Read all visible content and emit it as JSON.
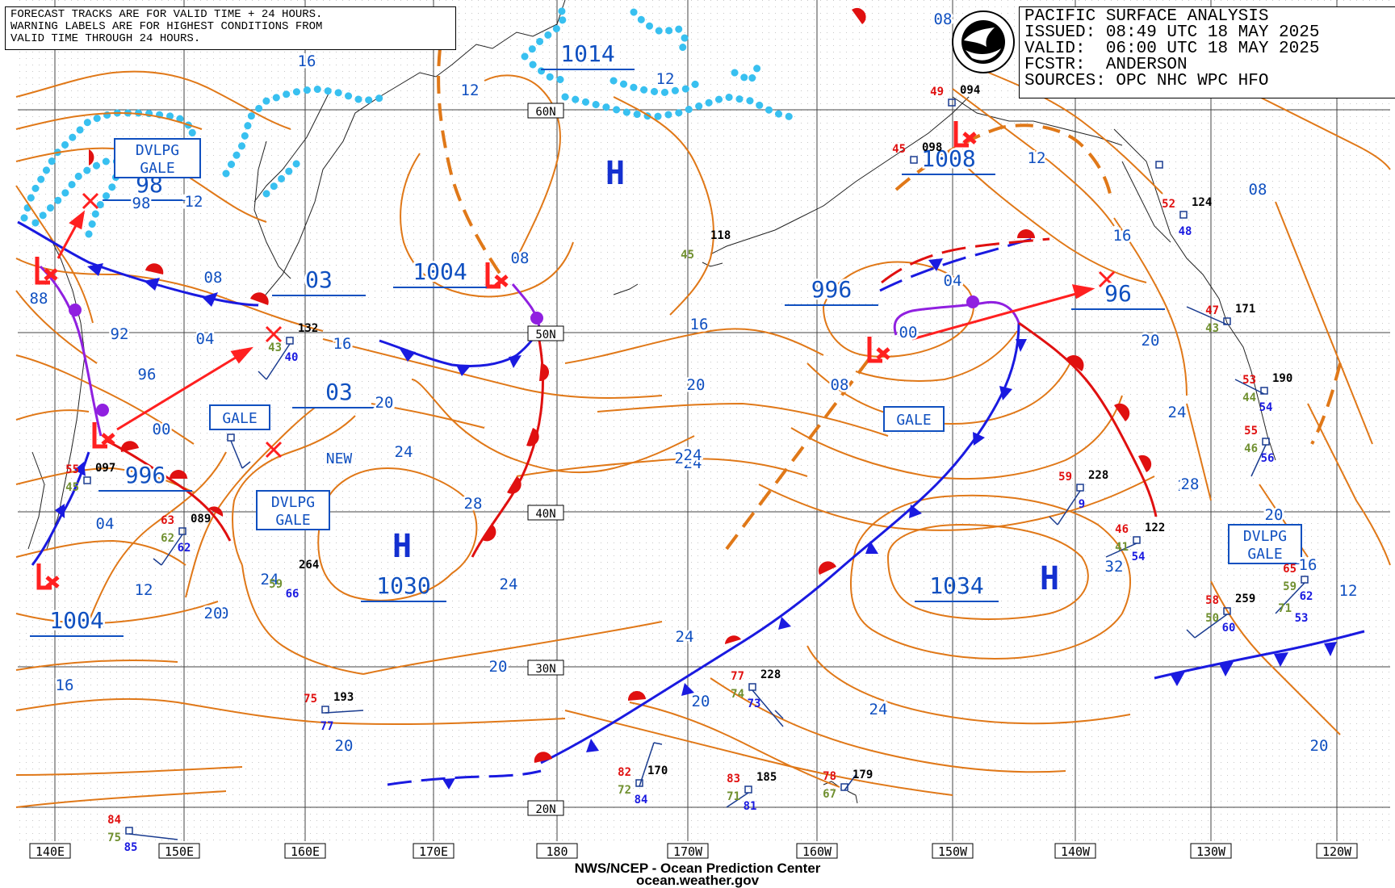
{
  "header_note": [
    "FORECAST TRACKS ARE FOR VALID TIME + 24 HOURS.",
    "WARNING LABELS ARE FOR HIGHEST CONDITIONS FROM",
    "VALID TIME THROUGH 24 HOURS."
  ],
  "title_block": [
    "PACIFIC SURFACE ANALYSIS",
    "ISSUED: 08:49 UTC 18 MAY 2025",
    "VALID:  06:00 UTC 18 MAY 2025",
    "FCSTR:  ANDERSON",
    "SOURCES: OPC NHC WPC HFO"
  ],
  "footer": [
    "NWS/NCEP - Ocean Prediction Center",
    "ocean.weather.gov"
  ],
  "colors": {
    "isobar": "#e07818",
    "label_blue": "#1050c0",
    "cold_front": "#1a1ae0",
    "warm_front": "#e01010",
    "occluded": "#9020e0",
    "ice_edge": "#38c0f0",
    "track": "#ff2020",
    "grid": "#444444"
  },
  "longitudes": [
    "140E",
    "150E",
    "160E",
    "170E",
    "180",
    "170W",
    "160W",
    "150W",
    "140W",
    "130W",
    "120W"
  ],
  "latitudes": [
    "60N",
    "50N",
    "40N",
    "30N",
    "20N"
  ],
  "pressure_centers": [
    {
      "type": "H",
      "value": "1014"
    },
    {
      "type": "H",
      "value": ""
    },
    {
      "type": "L",
      "value": "98"
    },
    {
      "type": "L",
      "value": "03"
    },
    {
      "type": "L",
      "value": "1004"
    },
    {
      "type": "L",
      "value": "1008"
    },
    {
      "type": "L",
      "value": "996"
    },
    {
      "type": "L",
      "value": "96"
    },
    {
      "type": "L",
      "value": "996"
    },
    {
      "type": "L",
      "value": "03"
    },
    {
      "type": "H",
      "value": "1030"
    },
    {
      "type": "H",
      "value": "1034"
    },
    {
      "type": "L",
      "value": "1004"
    }
  ],
  "new_label": "NEW",
  "warnings": [
    "DVLPG GALE",
    "GALE",
    "DVLPG GALE",
    "GALE",
    "DVLPG GALE"
  ],
  "isobar_labels": [
    "16",
    "12",
    "12",
    "08",
    "12",
    "08",
    "98",
    "12",
    "08",
    "88",
    "92",
    "04",
    "96",
    "00",
    "03",
    "16",
    "04",
    "12",
    "16",
    "20",
    "24",
    "20",
    "20",
    "24",
    "28",
    "24",
    "24",
    "20",
    "24",
    "20",
    "16",
    "16",
    "20",
    "24",
    "20",
    "24",
    "28",
    "32",
    "16",
    "08",
    "04",
    "00",
    "08",
    "12",
    "16",
    "20",
    "24",
    "28",
    "20",
    "16",
    "12",
    "08",
    "12",
    "04",
    "16",
    "20",
    "24",
    "20"
  ],
  "stations": [
    {
      "temp": "49",
      "press": "094"
    },
    {
      "temp": "45",
      "press": "098"
    },
    {
      "temp": "",
      "press": "118",
      "dew": "45"
    },
    {
      "temp": "",
      "press": "132",
      "dew": "43",
      "sst": "40"
    },
    {
      "temp": "55",
      "press": "097",
      "dew": "45"
    },
    {
      "temp": "63",
      "press": "089",
      "dew": "62",
      "sst": "62"
    },
    {
      "temp": "",
      "press": "264",
      "dew": "59",
      "sst": "66"
    },
    {
      "temp": "75",
      "press": "193",
      "sst": "77"
    },
    {
      "temp": "77",
      "press": "228",
      "dew": "74",
      "sst": "73"
    },
    {
      "temp": "82",
      "press": "170",
      "dew": "72",
      "sst": "84"
    },
    {
      "temp": "83",
      "press": "185",
      "dew": "71",
      "sst": "81"
    },
    {
      "temp": "78",
      "press": "179",
      "dew": "67"
    },
    {
      "temp": "84",
      "press": "",
      "dew": "75",
      "sst": "85"
    },
    {
      "temp": "59",
      "press": "228",
      "sst": "9"
    },
    {
      "temp": "46",
      "press": "122",
      "dew": "41",
      "sst": "54"
    },
    {
      "temp": "58",
      "press": "259",
      "dew": "50",
      "sst": "60"
    },
    {
      "temp": "47",
      "press": "171",
      "dew": "43"
    },
    {
      "temp": "53",
      "press": "190",
      "dew": "44",
      "sst": "54"
    },
    {
      "temp": "55",
      "press": "",
      "dew": "46",
      "sst": "56"
    },
    {
      "temp": "52",
      "press": "124",
      "sst": "48"
    },
    {
      "temp": "65",
      "press": "",
      "dew": "59",
      "sst": "62"
    },
    {
      "temp": "",
      "press": "",
      "dew": "71",
      "sst": "53"
    }
  ]
}
